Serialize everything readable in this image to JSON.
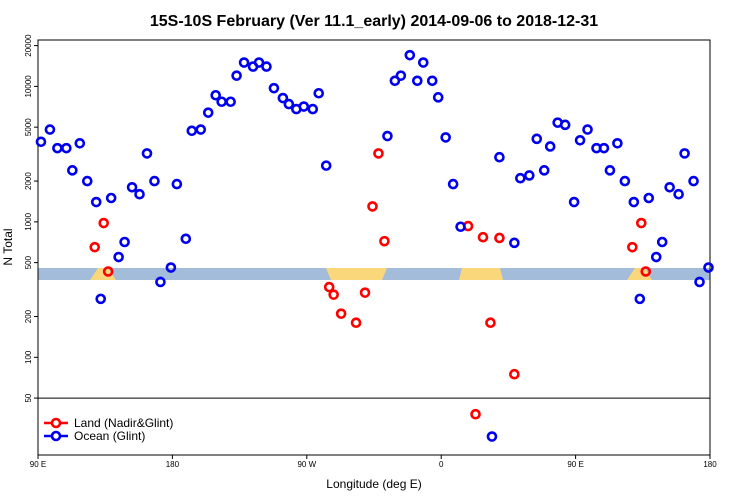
{
  "chart_data": {
    "type": "scatter",
    "title": "15S-10S February (Ver 11.1_early)   2014-09-06 to 2018-12-31",
    "x_label": "Longitude (deg E)",
    "y_label": "N Total",
    "log_y": true,
    "xlim": [
      90,
      540
    ],
    "xticks": [
      {
        "value": 90,
        "label": "90 E"
      },
      {
        "value": 180,
        "label": "180"
      },
      {
        "value": 270,
        "label": "90 W"
      },
      {
        "value": 360,
        "label": "0"
      },
      {
        "value": 450,
        "label": "90 E"
      },
      {
        "value": 540,
        "label": "180"
      }
    ],
    "ylim": [
      19,
      22000
    ],
    "yticks": [
      50,
      100,
      200,
      500,
      1000,
      2000,
      5000,
      10000,
      20000
    ],
    "legend": "bottom-left",
    "series": [
      {
        "name": "Land (Nadir&Glint)",
        "color": "#ff0000",
        "x": [
          128,
          134,
          137,
          285,
          288,
          293,
          303,
          309,
          314,
          318,
          322,
          378,
          383,
          388,
          393,
          399,
          409,
          488,
          494,
          497
        ],
        "values": [
          650,
          980,
          430,
          330,
          290,
          210,
          180,
          300,
          1300,
          3200,
          720,
          930,
          38,
          770,
          180,
          760,
          75,
          650,
          980,
          430
        ]
      },
      {
        "name": "Ocean (Glint)",
        "color": "#0000ee",
        "x": [
          92,
          98,
          103,
          109,
          113,
          118,
          123,
          129,
          132,
          139,
          144,
          148,
          153,
          158,
          163,
          168,
          172,
          179,
          183,
          189,
          193,
          199,
          204,
          209,
          213,
          219,
          223,
          228,
          234,
          238,
          243,
          248,
          254,
          258,
          263,
          268,
          274,
          278,
          283,
          324,
          329,
          333,
          339,
          344,
          348,
          354,
          358,
          363,
          368,
          373,
          394,
          399,
          409,
          413,
          419,
          424,
          429,
          433,
          438,
          443,
          449,
          453,
          458,
          464,
          469,
          473,
          478,
          483,
          489,
          493,
          499,
          504,
          508,
          513,
          519,
          523,
          529,
          533,
          539
        ],
        "values": [
          3900,
          4800,
          3500,
          3500,
          2400,
          3800,
          2000,
          1400,
          270,
          1500,
          550,
          710,
          1800,
          1600,
          3200,
          2000,
          360,
          460,
          1900,
          750,
          4700,
          4800,
          6400,
          8600,
          7700,
          7700,
          12000,
          15000,
          14000,
          15000,
          14000,
          9700,
          8200,
          7400,
          6800,
          7100,
          6800,
          8900,
          2600,
          4300,
          11000,
          12000,
          17000,
          11000,
          15000,
          11000,
          8300,
          4200,
          1900,
          920,
          26,
          3000,
          700,
          2100,
          2200,
          4100,
          2400,
          3600,
          5400,
          5200,
          1400,
          4000,
          4800,
          3500,
          3500,
          2400,
          3800,
          2000,
          1400,
          270,
          1500,
          550,
          710,
          1800,
          1600,
          3200,
          2000,
          360,
          460
        ]
      }
    ]
  }
}
